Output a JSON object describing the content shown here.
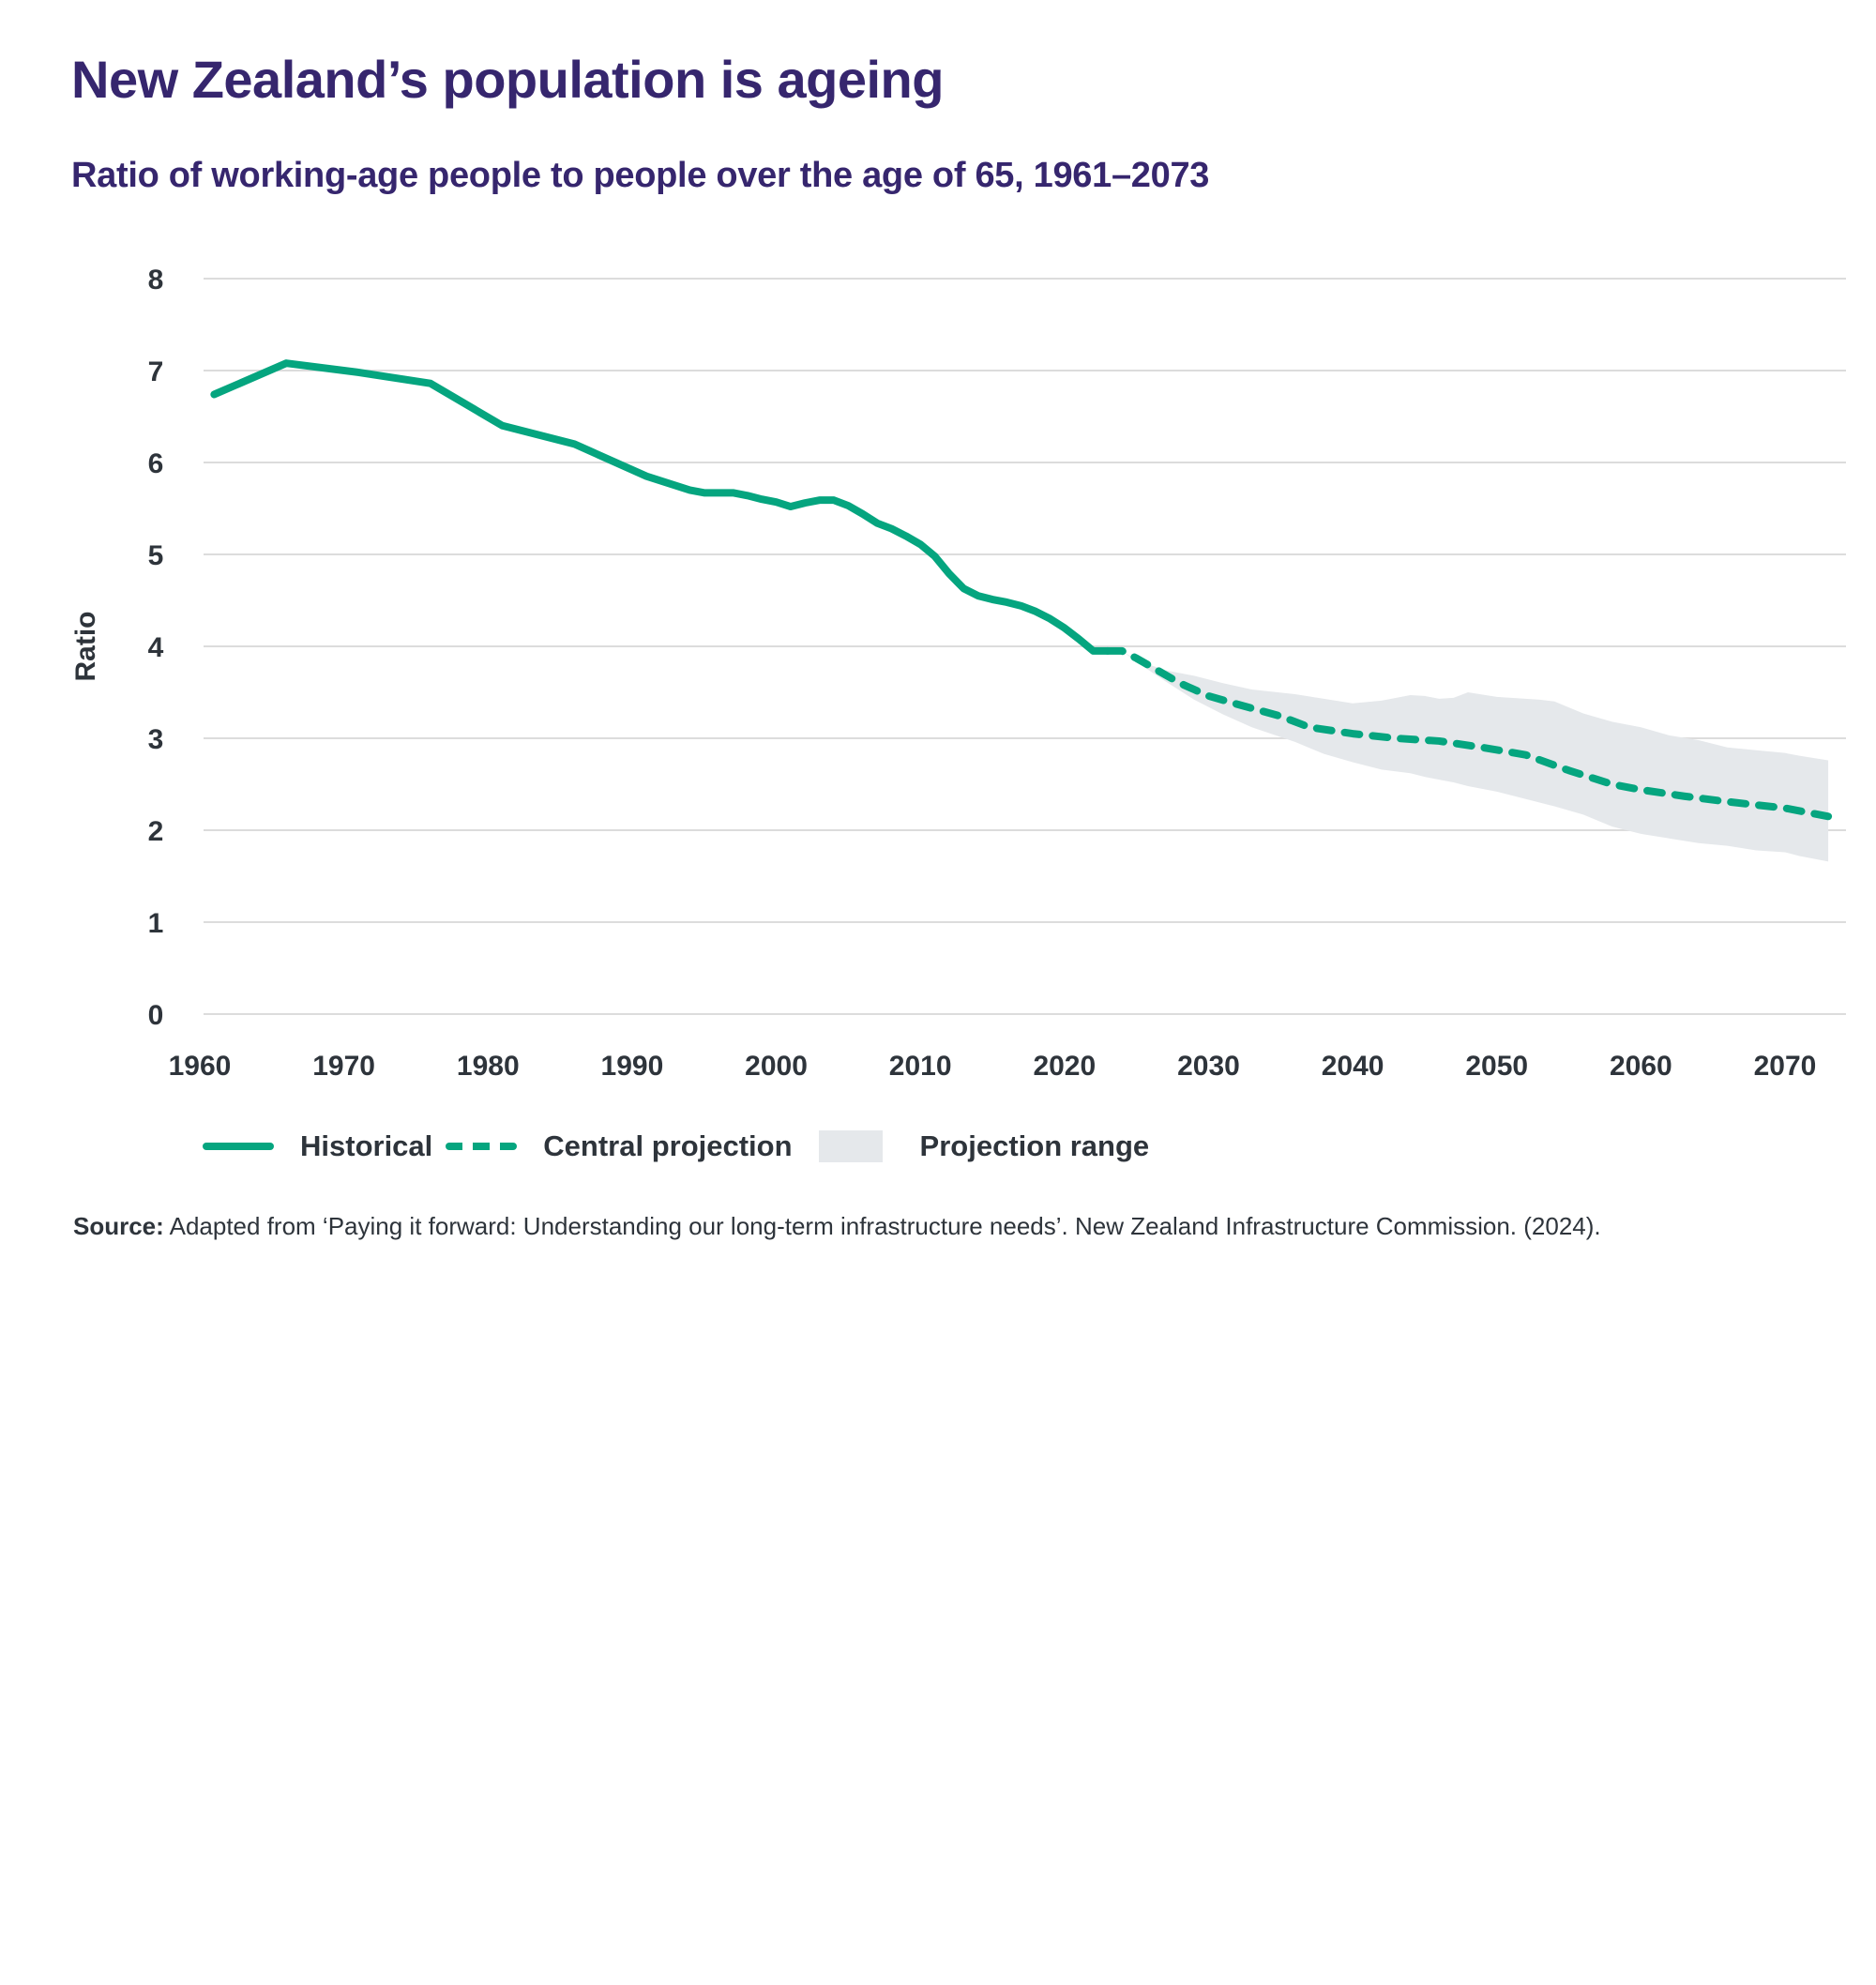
{
  "header": {
    "title": "New Zealand’s population is ageing",
    "subtitle": "Ratio of working-age people to people over the age of 65, 1961–2073"
  },
  "colors": {
    "title": "#36266e",
    "line": "#05a57f",
    "range": "#e5e8eb",
    "grid": "#dcdcdc",
    "text": "#2e343b"
  },
  "legend": {
    "historical": "Historical",
    "central": "Central projection",
    "range": "Projection range"
  },
  "source": {
    "label": "Source:",
    "text": "Adapted from ‘Paying it forward: Understanding our long-term infrastructure needs’. New Zealand Infrastructure Commission. (2024)."
  },
  "chart_data": {
    "type": "line",
    "title": "Ratio of working-age people to people over the age of 65, 1961–2073",
    "xlabel": "",
    "ylabel": "Ratio",
    "xlim": [
      1960,
      2073
    ],
    "ylim": [
      0,
      8
    ],
    "xticks": [
      1960,
      1970,
      1980,
      1990,
      2000,
      2010,
      2020,
      2030,
      2040,
      2050,
      2060,
      2070
    ],
    "yticks": [
      0,
      1,
      2,
      3,
      4,
      5,
      6,
      7,
      8
    ],
    "grid": "horizontal",
    "legend_position": "bottom-left",
    "series": [
      {
        "name": "Historical",
        "style": "solid",
        "x": [
          1961,
          1966,
          1971,
          1976,
          1981,
          1986,
          1991,
          1994,
          1995,
          1997,
          1998,
          1999,
          2000,
          2001,
          2002,
          2003,
          2004,
          2005,
          2006,
          2007,
          2008,
          2009,
          2010,
          2011,
          2012,
          2013,
          2014,
          2015,
          2016,
          2017,
          2018,
          2019,
          2020,
          2021,
          2022,
          2023
        ],
        "y": [
          6.74,
          7.08,
          6.98,
          6.86,
          6.4,
          6.2,
          5.85,
          5.7,
          5.67,
          5.67,
          5.64,
          5.6,
          5.57,
          5.52,
          5.56,
          5.59,
          5.59,
          5.53,
          5.44,
          5.34,
          5.28,
          5.2,
          5.11,
          4.98,
          4.79,
          4.63,
          4.55,
          4.51,
          4.48,
          4.44,
          4.38,
          4.3,
          4.2,
          4.08,
          3.95,
          3.95
        ]
      },
      {
        "name": "Central projection",
        "style": "dashed",
        "x": [
          2023,
          2024,
          2025,
          2026,
          2028,
          2030,
          2032,
          2035,
          2037,
          2040,
          2043,
          2046,
          2049,
          2052,
          2055,
          2058,
          2060,
          2063,
          2066,
          2070,
          2073
        ],
        "y": [
          3.95,
          3.95,
          3.87,
          3.78,
          3.6,
          3.46,
          3.37,
          3.24,
          3.12,
          3.05,
          3.0,
          2.97,
          2.9,
          2.82,
          2.65,
          2.5,
          2.44,
          2.37,
          2.31,
          2.24,
          2.15
        ]
      },
      {
        "name": "Projection range",
        "style": "area",
        "x": [
          2024,
          2025,
          2027,
          2029,
          2031,
          2033,
          2036,
          2038,
          2040,
          2042,
          2044,
          2045,
          2046,
          2047,
          2048,
          2050,
          2053,
          2054,
          2056,
          2058,
          2060,
          2062,
          2064,
          2066,
          2068,
          2070,
          2071,
          2073
        ],
        "upper": [
          3.95,
          3.85,
          3.74,
          3.68,
          3.6,
          3.53,
          3.48,
          3.43,
          3.38,
          3.41,
          3.47,
          3.46,
          3.43,
          3.44,
          3.5,
          3.45,
          3.42,
          3.4,
          3.27,
          3.18,
          3.12,
          3.03,
          2.98,
          2.9,
          2.87,
          2.84,
          2.81,
          2.76
        ],
        "lower": [
          3.95,
          3.83,
          3.62,
          3.42,
          3.26,
          3.12,
          2.96,
          2.83,
          2.74,
          2.66,
          2.62,
          2.58,
          2.55,
          2.52,
          2.48,
          2.42,
          2.3,
          2.26,
          2.17,
          2.04,
          1.96,
          1.91,
          1.86,
          1.83,
          1.78,
          1.76,
          1.72,
          1.66
        ]
      }
    ]
  }
}
